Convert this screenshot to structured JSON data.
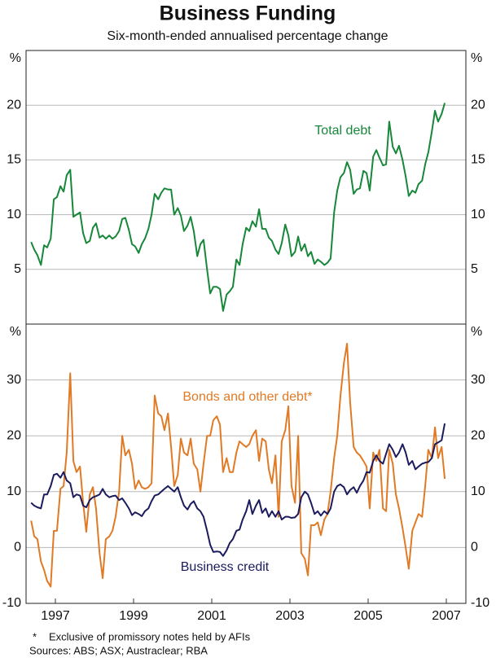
{
  "title": "Business Funding",
  "subtitle": "Six-month-ended annualised percentage change",
  "notes": [
    "*",
    "Exclusive of promissory notes held by AFIs",
    "Sources: ABS; ASX; Austraclear; RBA"
  ],
  "chart_data": [
    {
      "type": "line",
      "ylabel": "%",
      "xlim": [
        1996.25,
        2007.5
      ],
      "ylim": [
        0,
        25
      ],
      "yticks": [
        5,
        10,
        15,
        20
      ],
      "grid": true,
      "x": [
        1996.38,
        1996.46,
        1996.54,
        1996.63,
        1996.71,
        1996.79,
        1996.88,
        1996.96,
        1997.04,
        1997.13,
        1997.21,
        1997.29,
        1997.38,
        1997.46,
        1997.54,
        1997.63,
        1997.71,
        1997.79,
        1997.88,
        1997.96,
        1998.04,
        1998.13,
        1998.21,
        1998.29,
        1998.38,
        1998.46,
        1998.54,
        1998.63,
        1998.71,
        1998.79,
        1998.88,
        1998.96,
        1999.04,
        1999.13,
        1999.21,
        1999.29,
        1999.38,
        1999.46,
        1999.54,
        1999.63,
        1999.71,
        1999.79,
        1999.88,
        1999.96,
        2000.04,
        2000.13,
        2000.21,
        2000.29,
        2000.38,
        2000.46,
        2000.54,
        2000.63,
        2000.71,
        2000.79,
        2000.88,
        2000.96,
        2001.04,
        2001.13,
        2001.21,
        2001.29,
        2001.38,
        2001.46,
        2001.54,
        2001.63,
        2001.71,
        2001.79,
        2001.88,
        2001.96,
        2002.04,
        2002.13,
        2002.21,
        2002.29,
        2002.38,
        2002.46,
        2002.54,
        2002.63,
        2002.71,
        2002.79,
        2002.88,
        2002.96,
        2003.04,
        2003.13,
        2003.21,
        2003.29,
        2003.38,
        2003.46,
        2003.54,
        2003.63,
        2003.71,
        2003.79,
        2003.88,
        2003.96,
        2004.04,
        2004.13,
        2004.21,
        2004.29,
        2004.38,
        2004.46,
        2004.54,
        2004.63,
        2004.71,
        2004.79,
        2004.88,
        2004.96,
        2005.04,
        2005.13,
        2005.21,
        2005.29,
        2005.38,
        2005.46,
        2005.54,
        2005.63,
        2005.71,
        2005.79,
        2005.88,
        2005.96,
        2006.04,
        2006.13,
        2006.21,
        2006.29,
        2006.38,
        2006.46,
        2006.54,
        2006.63,
        2006.71,
        2006.79,
        2006.88,
        2006.96
      ],
      "series": [
        {
          "name": "Total debt",
          "color": "#17873a",
          "values": [
            7.5,
            6.8,
            6.3,
            5.4,
            7.2,
            7.0,
            7.8,
            11.4,
            11.6,
            12.6,
            12.1,
            13.6,
            14.1,
            9.8,
            10.0,
            10.2,
            8.3,
            7.4,
            7.6,
            8.8,
            9.2,
            7.9,
            8.1,
            7.8,
            8.1,
            7.8,
            8.0,
            8.5,
            9.6,
            9.7,
            8.6,
            7.3,
            7.1,
            6.5,
            7.3,
            7.8,
            8.7,
            10.0,
            11.9,
            11.4,
            12.0,
            12.4,
            12.3,
            12.3,
            10.0,
            10.6,
            9.9,
            8.5,
            9.0,
            9.8,
            8.5,
            6.2,
            7.3,
            7.7,
            5.0,
            2.8,
            3.4,
            3.4,
            3.2,
            1.2,
            2.7,
            3.0,
            3.4,
            5.9,
            5.4,
            7.3,
            8.8,
            8.5,
            9.4,
            8.9,
            10.5,
            8.7,
            8.7,
            7.9,
            7.6,
            6.8,
            6.4,
            7.4,
            9.1,
            8.1,
            6.2,
            6.6,
            8.0,
            6.7,
            7.3,
            6.2,
            6.6,
            5.5,
            5.9,
            5.7,
            5.4,
            5.6,
            6.0,
            10.2,
            12.2,
            13.4,
            13.8,
            14.8,
            14.1,
            11.9,
            12.3,
            12.4,
            14.0,
            13.8,
            12.2,
            15.3,
            15.9,
            15.2,
            14.5,
            14.6,
            18.5,
            16.2,
            15.6,
            16.3,
            15.0,
            13.5,
            11.7,
            12.2,
            12.0,
            12.8,
            13.1,
            14.6,
            15.7,
            17.6,
            19.5,
            18.5,
            19.2,
            20.2
          ]
        }
      ]
    },
    {
      "type": "line",
      "ylabel": "%",
      "xlim": [
        1996.25,
        2007.5
      ],
      "ylim": [
        -10,
        40
      ],
      "yticks": [
        -10,
        0,
        10,
        20,
        30
      ],
      "grid": true,
      "xticks": [
        1997,
        1999,
        2001,
        2003,
        2005,
        2007
      ],
      "x": [
        1996.38,
        1996.46,
        1996.54,
        1996.63,
        1996.71,
        1996.79,
        1996.88,
        1996.96,
        1997.04,
        1997.13,
        1997.21,
        1997.29,
        1997.38,
        1997.46,
        1997.54,
        1997.63,
        1997.71,
        1997.79,
        1997.88,
        1997.96,
        1998.04,
        1998.13,
        1998.21,
        1998.29,
        1998.38,
        1998.46,
        1998.54,
        1998.63,
        1998.71,
        1998.79,
        1998.88,
        1998.96,
        1999.04,
        1999.13,
        1999.21,
        1999.29,
        1999.38,
        1999.46,
        1999.54,
        1999.63,
        1999.71,
        1999.79,
        1999.88,
        1999.96,
        2000.04,
        2000.13,
        2000.21,
        2000.29,
        2000.38,
        2000.46,
        2000.54,
        2000.63,
        2000.71,
        2000.79,
        2000.88,
        2000.96,
        2001.04,
        2001.13,
        2001.21,
        2001.29,
        2001.38,
        2001.46,
        2001.54,
        2001.63,
        2001.71,
        2001.79,
        2001.88,
        2001.96,
        2002.04,
        2002.13,
        2002.21,
        2002.29,
        2002.38,
        2002.46,
        2002.54,
        2002.63,
        2002.71,
        2002.79,
        2002.88,
        2002.96,
        2003.04,
        2003.13,
        2003.21,
        2003.29,
        2003.38,
        2003.46,
        2003.54,
        2003.63,
        2003.71,
        2003.79,
        2003.88,
        2003.96,
        2004.04,
        2004.13,
        2004.21,
        2004.29,
        2004.38,
        2004.46,
        2004.54,
        2004.63,
        2004.71,
        2004.79,
        2004.88,
        2004.96,
        2005.04,
        2005.13,
        2005.21,
        2005.29,
        2005.38,
        2005.46,
        2005.54,
        2005.63,
        2005.71,
        2005.79,
        2005.88,
        2005.96,
        2006.04,
        2006.13,
        2006.21,
        2006.29,
        2006.38,
        2006.46,
        2006.54,
        2006.63,
        2006.71,
        2006.79,
        2006.88,
        2006.96
      ],
      "series": [
        {
          "name": "Bonds and other debt*",
          "color": "#e07a25",
          "values": [
            4.8,
            2,
            1.5,
            -2.5,
            -4,
            -6,
            -7,
            3,
            3,
            10.5,
            11,
            17,
            31.2,
            15.5,
            13.5,
            14.5,
            8,
            2.8,
            9.5,
            10.8,
            7,
            -1,
            -5.5,
            1.5,
            2,
            3,
            5.5,
            10,
            20,
            16.5,
            17.5,
            15,
            10.5,
            12,
            10.8,
            10.5,
            10.8,
            11.5,
            27.2,
            24,
            23.5,
            21,
            24,
            18,
            11,
            13,
            19.5,
            17,
            16.5,
            19.5,
            15,
            14,
            10,
            15,
            20,
            20,
            22.8,
            23.5,
            22,
            13.5,
            16,
            13.5,
            13.5,
            17,
            19,
            18.5,
            18,
            18.5,
            20,
            21,
            15.5,
            19.5,
            19,
            14,
            11.5,
            16.5,
            5.5,
            19,
            21,
            25.3,
            11,
            8,
            20,
            -1,
            -2,
            -5,
            4,
            4,
            4.5,
            2.2,
            5,
            6,
            10,
            16,
            20,
            27,
            33,
            36.5,
            26,
            18,
            17,
            16.5,
            15.5,
            14.5,
            7,
            17,
            15.5,
            17.5,
            7,
            6.5,
            17.5,
            15,
            9.5,
            7,
            3.5,
            0,
            -3.8,
            3,
            4.5,
            6,
            5.5,
            11,
            17.5,
            16,
            21.5,
            16,
            18,
            12.3
          ]
        },
        {
          "name": "Business credit",
          "color": "#1b1b5e",
          "values": [
            8,
            7.5,
            7.2,
            7,
            9.5,
            9.5,
            11,
            13,
            13.2,
            12.5,
            13.5,
            12,
            11.5,
            9,
            9.5,
            9.3,
            7.5,
            7.2,
            8.5,
            9,
            9.2,
            9.5,
            10.5,
            9.5,
            9,
            9.2,
            9.3,
            8.5,
            8.8,
            8,
            7,
            5.8,
            6.3,
            6,
            5.6,
            6.5,
            7,
            8.3,
            9.3,
            9.5,
            10,
            10.5,
            11,
            10.5,
            10,
            10.8,
            9,
            7.5,
            6.8,
            7.8,
            8.3,
            7,
            6.5,
            5.5,
            3,
            0.5,
            -0.8,
            -0.7,
            -0.8,
            -1.5,
            -0.5,
            0.8,
            1.5,
            3,
            3.2,
            5,
            6.5,
            8.5,
            6,
            7.5,
            8.5,
            6.2,
            7,
            5.5,
            6.5,
            5.5,
            6.5,
            5,
            5.5,
            5.5,
            5.3,
            5.4,
            6,
            9,
            10,
            9.5,
            8,
            6,
            6.5,
            5.7,
            6.5,
            6,
            7,
            10,
            11,
            11.3,
            10.8,
            9.5,
            10.3,
            10.8,
            9.8,
            11,
            12,
            13.5,
            13.4,
            15.5,
            16.5,
            15.5,
            15,
            16.8,
            18.5,
            17.5,
            16.2,
            17,
            18.5,
            17,
            14.8,
            15.5,
            14,
            14.5,
            15,
            15.2,
            15.3,
            16,
            18.5,
            18.8,
            19.2,
            22.2
          ]
        }
      ]
    }
  ]
}
